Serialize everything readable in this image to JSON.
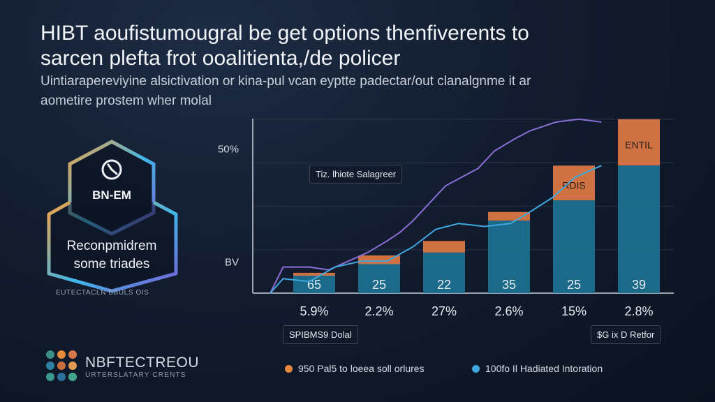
{
  "header": {
    "title_line1": "HIBT aoufistumougral be get options thenfiverents to",
    "title_line2": "sarcen plefta frot ooalitienta,/de policer",
    "subtitle_line1": "Uintiarapereviyine alsictivation or kina-pul vcan eyptte padectar/out clanalgnme it ar",
    "subtitle_line2": "aometire prostem wher molal"
  },
  "badge": {
    "brand": "BN-EM",
    "caption_line1": "Reconpmidrem",
    "caption_line2": "some triades",
    "footer": "EUTECTACLN BBULS OIS",
    "gradient": [
      "#f0a347",
      "#3fb6e8",
      "#7a5cd6"
    ]
  },
  "logo": {
    "name": "NBFTECTREOU",
    "tagline": "URTERSLATARY CRENTS",
    "dot_colors": [
      "#3b8f86",
      "#e58b3a",
      "#d9774a",
      "#2f7fa3",
      "#c9703e",
      "#e29a52",
      "#3a9a8c",
      "#2c6f9a",
      "#46a58f"
    ]
  },
  "chart_data": {
    "type": "bar",
    "categories": [
      "5.9%",
      "2.2%",
      "27%",
      "2.6%",
      "15%",
      "2.8%"
    ],
    "series": [
      {
        "values": [
          6,
          10,
          14,
          25,
          32,
          44
        ],
        "color": "#1e6f8e"
      },
      {
        "values": [
          1,
          3,
          4,
          3,
          12,
          16
        ],
        "color": "#e07a45"
      }
    ],
    "bar_labels": [
      "65",
      "25",
      "22",
      "35",
      "25",
      "39"
    ],
    "line_series": [
      {
        "color": "#8b6fd8",
        "points": [
          [
            0,
            0
          ],
          [
            0.2,
            9
          ],
          [
            0.6,
            9
          ],
          [
            0.9,
            8
          ],
          [
            1.2,
            11
          ],
          [
            1.5,
            14
          ],
          [
            1.8,
            18
          ],
          [
            2.0,
            21
          ],
          [
            2.2,
            25
          ],
          [
            2.45,
            31
          ],
          [
            2.7,
            37
          ],
          [
            2.95,
            40
          ],
          [
            3.2,
            43
          ],
          [
            3.45,
            49
          ],
          [
            3.75,
            53
          ],
          [
            4.0,
            56
          ],
          [
            4.4,
            59
          ],
          [
            4.75,
            60
          ],
          [
            5.1,
            59
          ]
        ]
      },
      {
        "color": "#3fa8e0",
        "points": [
          [
            0,
            0
          ],
          [
            0.2,
            5
          ],
          [
            0.6,
            4
          ],
          [
            1.0,
            9
          ],
          [
            1.4,
            11
          ],
          [
            1.8,
            11
          ],
          [
            2.2,
            16
          ],
          [
            2.55,
            22
          ],
          [
            2.9,
            24
          ],
          [
            3.3,
            23
          ],
          [
            3.7,
            24
          ],
          [
            4.0,
            28
          ],
          [
            4.35,
            33
          ],
          [
            4.7,
            40
          ],
          [
            5.1,
            44
          ]
        ]
      }
    ],
    "ylim": [
      0,
      65
    ],
    "y_tick_labels": [
      {
        "text": "50%",
        "value": 50
      },
      {
        "text": "BV",
        "value": 11
      }
    ],
    "inner_labels": [
      "ENTIL",
      "RDIS"
    ],
    "annotations": {
      "top_box": "Tiz. lhiote Salagreer",
      "bottom_left_box": "SPIBMS9 Dolal",
      "bottom_right_box": "$G ix D Retfor"
    },
    "legend": [
      {
        "label": "950 Pal5 to loeea soll orlures",
        "color": "#e8883f"
      },
      {
        "label": "100fo Il Hadiated Intoration",
        "color": "#3fa8e0"
      }
    ],
    "grid": true,
    "legend_position": "bottom"
  }
}
